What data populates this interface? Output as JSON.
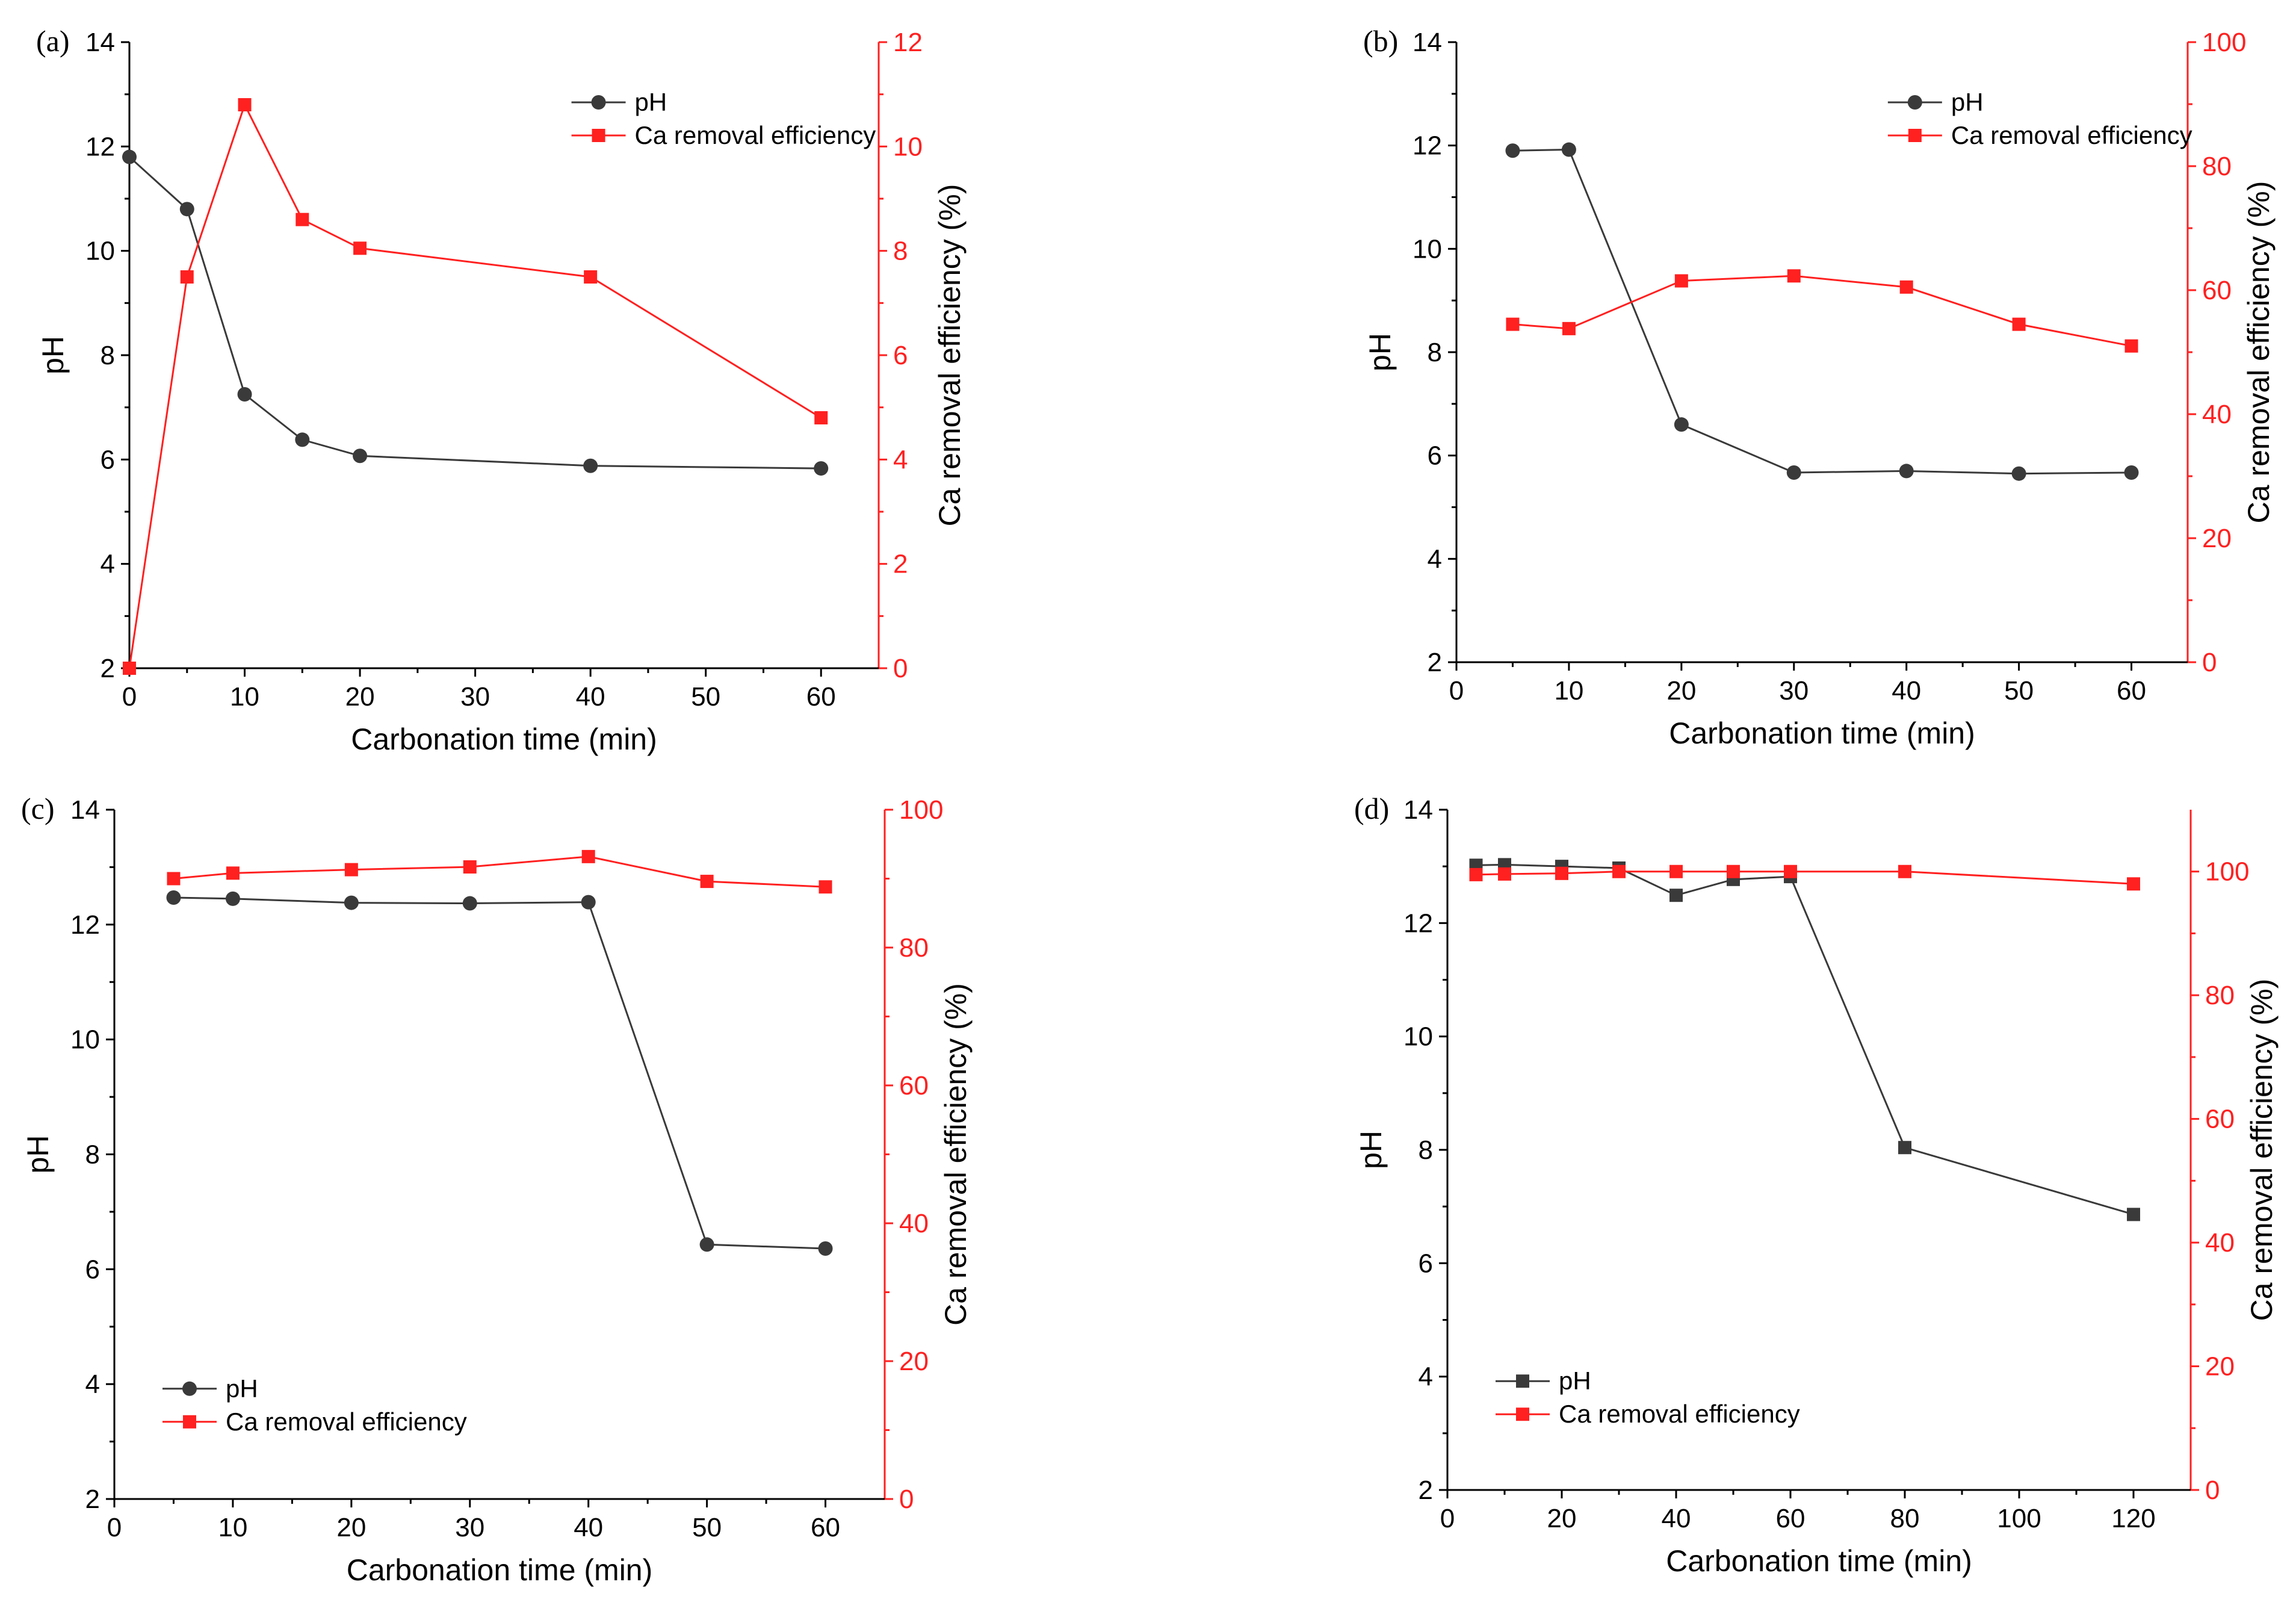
{
  "colors": {
    "ph": "#3a3a3a",
    "ca": "#ff2020",
    "axis": "#000000"
  },
  "chart_data": [
    {
      "panel": "(a)",
      "type": "line",
      "xlabel": "Carbonation time (min)",
      "ylabel": "pH",
      "y2label": "Ca removal efficiency (%)",
      "xlim": [
        0,
        65
      ],
      "xticks": [
        0,
        10,
        20,
        30,
        40,
        50,
        60
      ],
      "ylim": [
        2,
        14
      ],
      "yticks": [
        2,
        4,
        6,
        8,
        10,
        12,
        14
      ],
      "y2lim": [
        0,
        12
      ],
      "y2ticks": [
        0,
        2,
        4,
        6,
        8,
        10,
        12
      ],
      "legend_position": "top-right",
      "series": [
        {
          "name": "pH",
          "axis": "left",
          "marker": "circle",
          "x": [
            0,
            5,
            10,
            15,
            20,
            40,
            60
          ],
          "values": [
            11.8,
            10.8,
            7.25,
            6.38,
            6.07,
            5.88,
            5.83
          ]
        },
        {
          "name": "Ca removal efficiency",
          "axis": "right",
          "marker": "square",
          "x": [
            0,
            5,
            10,
            15,
            20,
            40,
            60
          ],
          "values": [
            0,
            7.5,
            10.8,
            8.6,
            8.05,
            7.5,
            4.8
          ]
        }
      ]
    },
    {
      "panel": "(b)",
      "type": "line",
      "xlabel": "Carbonation time  (min)",
      "ylabel": "pH",
      "y2label": "Ca removal efficiency (%)",
      "xlim": [
        0,
        65
      ],
      "xticks": [
        0,
        10,
        20,
        30,
        40,
        50,
        60
      ],
      "ylim": [
        2,
        14
      ],
      "yticks": [
        2,
        4,
        6,
        8,
        10,
        12,
        14
      ],
      "y2lim": [
        0,
        100
      ],
      "y2ticks": [
        0,
        20,
        40,
        60,
        80,
        100
      ],
      "legend_position": "top-right",
      "series": [
        {
          "name": "pH",
          "axis": "left",
          "marker": "circle",
          "x": [
            5,
            10,
            20,
            30,
            40,
            50,
            60
          ],
          "values": [
            11.9,
            11.92,
            6.6,
            5.67,
            5.7,
            5.65,
            5.67
          ]
        },
        {
          "name": "Ca removal efficiency",
          "axis": "right",
          "marker": "square",
          "x": [
            5,
            10,
            20,
            30,
            40,
            50,
            60
          ],
          "values": [
            54.5,
            53.8,
            61.5,
            62.3,
            60.5,
            54.5,
            51
          ]
        }
      ]
    },
    {
      "panel": "(c)",
      "type": "line",
      "xlabel": "Carbonation time  (min)",
      "ylabel": "pH",
      "y2label": "Ca removal efficiency (%)",
      "xlim": [
        0,
        65
      ],
      "xticks": [
        0,
        10,
        20,
        30,
        40,
        50,
        60
      ],
      "ylim": [
        2,
        14
      ],
      "yticks": [
        2,
        4,
        6,
        8,
        10,
        12,
        14
      ],
      "y2lim": [
        0,
        100
      ],
      "y2ticks": [
        0,
        20,
        40,
        60,
        80,
        100
      ],
      "legend_position": "bottom-left",
      "series": [
        {
          "name": "pH",
          "axis": "left",
          "marker": "circle",
          "x": [
            5,
            10,
            20,
            30,
            40,
            50,
            60
          ],
          "values": [
            12.47,
            12.45,
            12.38,
            12.37,
            12.39,
            6.43,
            6.36
          ]
        },
        {
          "name": "Ca removal efficiency",
          "axis": "right",
          "marker": "square",
          "x": [
            5,
            10,
            20,
            30,
            40,
            50,
            60
          ],
          "values": [
            90,
            90.8,
            91.3,
            91.7,
            93.2,
            89.6,
            88.8
          ]
        }
      ]
    },
    {
      "panel": "(d)",
      "type": "line",
      "xlabel": "Carbonation time  (min)",
      "ylabel": "pH",
      "y2label": "Ca removal efficiency (%)",
      "xlim": [
        0,
        130
      ],
      "xticks": [
        0,
        20,
        40,
        60,
        80,
        100,
        120
      ],
      "ylim": [
        2,
        14
      ],
      "yticks": [
        2,
        4,
        6,
        8,
        10,
        12,
        14
      ],
      "y2lim": [
        0,
        110
      ],
      "y2ticks": [
        0,
        20,
        40,
        60,
        80,
        100
      ],
      "legend_position": "bottom-left",
      "series": [
        {
          "name": "pH",
          "axis": "left",
          "marker": "square",
          "x": [
            5,
            10,
            20,
            30,
            40,
            50,
            60,
            80,
            120
          ],
          "values": [
            13.02,
            13.03,
            13.0,
            12.97,
            12.49,
            12.77,
            12.82,
            8.04,
            6.86
          ]
        },
        {
          "name": "Ca removal efficiency",
          "axis": "right",
          "marker": "square",
          "x": [
            5,
            10,
            20,
            30,
            40,
            50,
            60,
            80,
            120
          ],
          "values": [
            99.5,
            99.6,
            99.7,
            100,
            100,
            100,
            100,
            100,
            98
          ]
        }
      ]
    }
  ]
}
